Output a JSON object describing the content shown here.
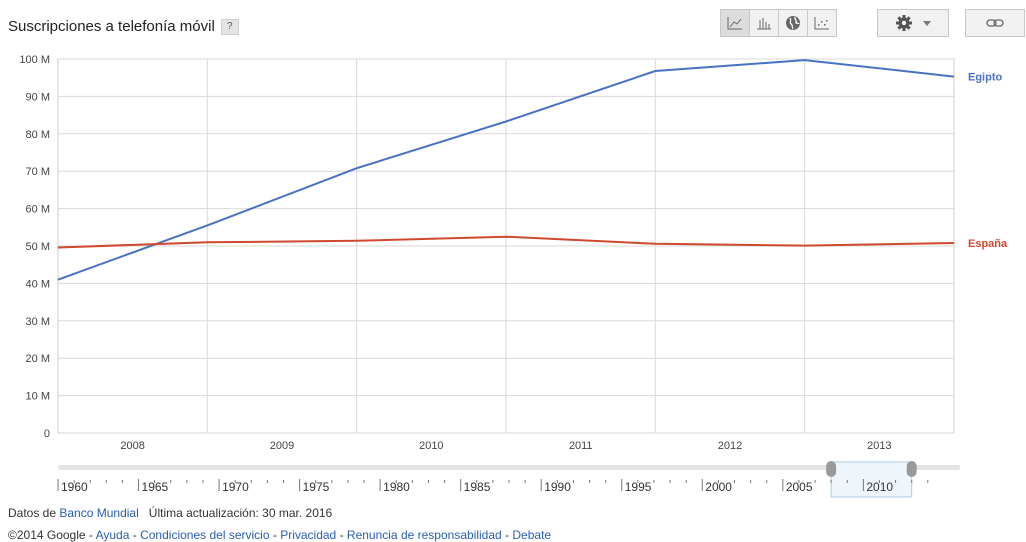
{
  "header": {
    "title": "Suscripciones a telefonía móvil",
    "help_label": "?"
  },
  "toolbar": {
    "buttons": [
      {
        "icon": "line-chart-icon",
        "active": true
      },
      {
        "icon": "bar-chart-icon",
        "active": false
      },
      {
        "icon": "globe-icon",
        "active": false
      },
      {
        "icon": "scatter-chart-icon",
        "active": false
      }
    ],
    "settings_icon": "gear-icon",
    "link_icon": "link-icon"
  },
  "chart_data": {
    "type": "line",
    "title": "",
    "categories": [
      "2008",
      "2009",
      "2010",
      "2011",
      "2012",
      "2013"
    ],
    "x": [
      2007.5,
      2008.5,
      2009.5,
      2010.5,
      2011.5,
      2012.5,
      2013.5
    ],
    "xlim": [
      2007.5,
      2013.5
    ],
    "ylim": [
      0,
      100000000
    ],
    "y_ticks": [
      "0",
      "10 M",
      "20 M",
      "30 M",
      "40 M",
      "50 M",
      "60 M",
      "70 M",
      "80 M",
      "90 M",
      "100 M"
    ],
    "grid": true,
    "legend": "right",
    "series": [
      {
        "name": "Egipto",
        "color": "#4a72c4",
        "values": [
          41000000,
          55500000,
          70800000,
          83300000,
          96800000,
          99700000,
          95300000
        ]
      },
      {
        "name": "España",
        "color": "#d0482f",
        "values": [
          49600000,
          51000000,
          51400000,
          52500000,
          50600000,
          50100000,
          50800000
        ]
      }
    ],
    "slider": {
      "range": [
        1960,
        2016
      ],
      "labels": [
        "1960",
        "1965",
        "1970",
        "1975",
        "1980",
        "1985",
        "1990",
        "1995",
        "2000",
        "2005",
        "2010"
      ],
      "selected": [
        2008,
        2013
      ]
    }
  },
  "footer": {
    "data_prefix": "Datos de",
    "source_link": "Banco Mundial",
    "updated": "Última actualización: 30 mar. 2016",
    "copyright": "©2014 Google",
    "links": [
      "Ayuda",
      "Condiciones del servicio",
      "Privacidad",
      "Renuncia de responsabilidad",
      "Debate"
    ]
  }
}
